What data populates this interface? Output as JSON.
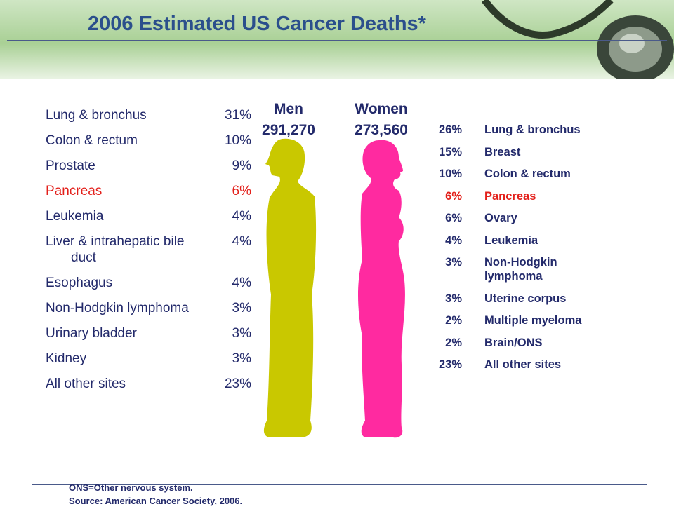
{
  "title": "2006 Estimated US Cancer Deaths*",
  "men": {
    "label": "Men",
    "total": "291,270",
    "rows": [
      {
        "site": "Lung & bronchus",
        "pct": "31%"
      },
      {
        "site": "Colon & rectum",
        "pct": "10%"
      },
      {
        "site": "Prostate",
        "pct": "9%"
      },
      {
        "site": "Pancreas",
        "pct": "6%",
        "color": "#e3201b"
      },
      {
        "site": "Leukemia",
        "pct": "4%"
      },
      {
        "site": "Liver & intrahepatic bile duct",
        "pct": "4%"
      },
      {
        "site": "Esophagus",
        "pct": "4%"
      },
      {
        "site": "Non-Hodgkin lymphoma",
        "pct": "3%"
      },
      {
        "site": "Urinary bladder",
        "pct": "3%"
      },
      {
        "site": "Kidney",
        "pct": "3%"
      },
      {
        "site": "All other sites",
        "pct": "23%"
      }
    ]
  },
  "women": {
    "label": "Women",
    "total": "273,560",
    "rows": [
      {
        "site": "Lung & bronchus",
        "pct": "26%"
      },
      {
        "site": "Breast",
        "pct": "15%"
      },
      {
        "site": "Colon & rectum",
        "pct": "10%"
      },
      {
        "site": "Pancreas",
        "pct": "6%",
        "color": "#e3201b"
      },
      {
        "site": "Ovary",
        "pct": "6%"
      },
      {
        "site": "Leukemia",
        "pct": "4%"
      },
      {
        "site": "Non-Hodgkin lymphoma",
        "pct": "3%"
      },
      {
        "site": "Uterine corpus",
        "pct": "3%"
      },
      {
        "site": "Multiple myeloma",
        "pct": "2%"
      },
      {
        "site": "Brain/ONS",
        "pct": "2%"
      },
      {
        "site": "All other sites",
        "pct": "23%"
      }
    ]
  },
  "footnotes": [
    "ONS=Other nervous system.",
    "Source: American Cancer Society, 2006."
  ]
}
